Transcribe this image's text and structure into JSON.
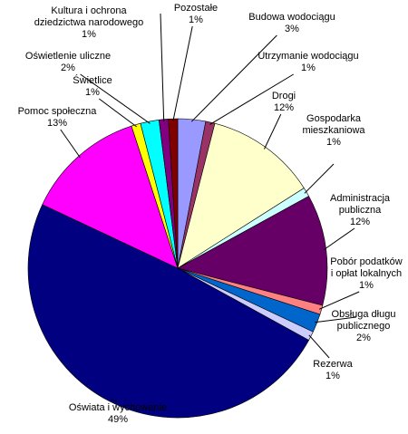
{
  "chart_data": {
    "type": "pie",
    "title": "",
    "slices": [
      {
        "label": [
          "Budowa wodociągu"
        ],
        "value": 3,
        "value_label": "3%",
        "color": "#9999ff"
      },
      {
        "label": [
          "Utrzymanie wodociągu"
        ],
        "value": 1,
        "value_label": "1%",
        "color": "#993366"
      },
      {
        "label": [
          "Drogi"
        ],
        "value": 12,
        "value_label": "12%",
        "color": "#ffffcc"
      },
      {
        "label": [
          "Gospodarka",
          "mieszkaniowa"
        ],
        "value": 1,
        "value_label": "1%",
        "color": "#ccffff"
      },
      {
        "label": [
          "Administracja",
          "publiczna"
        ],
        "value": 12,
        "value_label": "12%",
        "color": "#660066"
      },
      {
        "label": [
          "Pobór podatków",
          "i opłat lokalnych"
        ],
        "value": 1,
        "value_label": "1%",
        "color": "#ff8080"
      },
      {
        "label": [
          "Obsługa długu",
          "publicznego"
        ],
        "value": 2,
        "value_label": "2%",
        "color": "#0066cc"
      },
      {
        "label": [
          "Rezerwa"
        ],
        "value": 1,
        "value_label": "1%",
        "color": "#ccccff"
      },
      {
        "label": [
          "Oświata i wychowanie"
        ],
        "value": 49,
        "value_label": "49%",
        "color": "#000080"
      },
      {
        "label": [
          "Pomoc społeczna"
        ],
        "value": 13,
        "value_label": "13%",
        "color": "#ff00ff"
      },
      {
        "label": [
          "Świetlice"
        ],
        "value": 1,
        "value_label": "1%",
        "color": "#ffff00"
      },
      {
        "label": [
          "Oświetlenie uliczne"
        ],
        "value": 2,
        "value_label": "2%",
        "color": "#00ffff"
      },
      {
        "label": [
          "Kultura i ochrona",
          "dziedzictwa narodowego"
        ],
        "value": 1,
        "value_label": "1%",
        "color": "#800080"
      },
      {
        "label": [
          "Pozostałe"
        ],
        "value": 1,
        "value_label": "1%",
        "color": "#800000"
      }
    ]
  }
}
